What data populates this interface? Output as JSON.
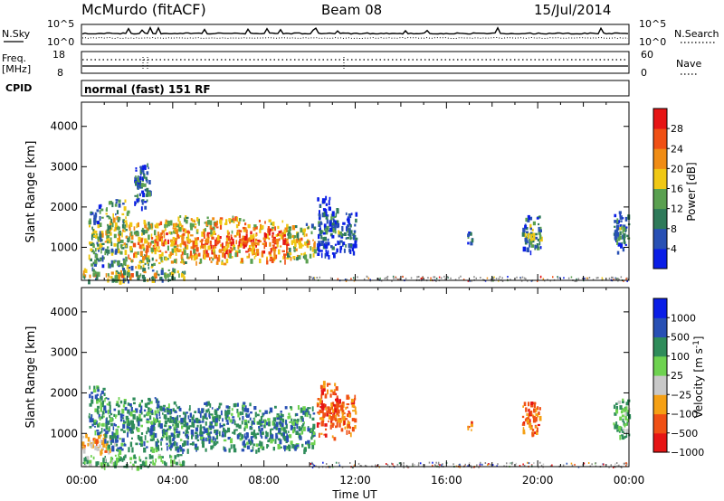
{
  "header": {
    "station": "McMurdo (fitACF)",
    "beam": "Beam 08",
    "date": "15/Jul/2014"
  },
  "top_panel": {
    "left_label": "N.Sky",
    "right_label": "N.Search",
    "left_ticks": [
      "10^5",
      "10^0"
    ],
    "right_ticks": [
      "10^5",
      "10^0"
    ]
  },
  "freq_panel": {
    "left_label_1": "Freq.",
    "left_label_2": "[MHz]",
    "right_label": "Nave",
    "left_ticks": [
      "18",
      "8"
    ],
    "right_ticks": [
      "60",
      "0"
    ]
  },
  "cpid_panel": {
    "label": "CPID",
    "text": "normal (fast) 151 RF"
  },
  "colors": {
    "power": [
      "#0a1ee6",
      "#2850b4",
      "#2f7a5a",
      "#5aa050",
      "#f0c814",
      "#f08c14",
      "#f05014",
      "#e61414"
    ],
    "velocity": [
      "#e61414",
      "#f05014",
      "#f5a014",
      "#c8c8c8",
      "#6ed250",
      "#2f8c5a",
      "#2850b4",
      "#0a1ee6"
    ],
    "ground_scatter": "#8c8c8c"
  },
  "chart_data": [
    {
      "type": "heatmap",
      "title": "",
      "ylabel": "Slant Range [km]",
      "xlabel": "",
      "x_range_hours": [
        0,
        24
      ],
      "y_range_km": [
        180,
        4600
      ],
      "y_ticks": [
        "1000",
        "2000",
        "3000",
        "4000"
      ],
      "colorbar": {
        "label": "Power [dB]",
        "range": [
          0,
          32
        ],
        "tick_labels": [
          "4",
          "8",
          "12",
          "16",
          "20",
          "24",
          "28"
        ]
      },
      "echo_regions": [
        {
          "t": [
            0.3,
            0.9
          ],
          "r": [
            400,
            2100
          ],
          "level": 0.45
        },
        {
          "t": [
            1.0,
            2.0
          ],
          "r": [
            500,
            2200
          ],
          "level": 0.55
        },
        {
          "t": [
            2.0,
            3.2
          ],
          "r": [
            500,
            1700
          ],
          "level": 0.7
        },
        {
          "t": [
            3.2,
            5.0
          ],
          "r": [
            600,
            1800
          ],
          "level": 0.75
        },
        {
          "t": [
            5.0,
            7.0
          ],
          "r": [
            600,
            1800
          ],
          "level": 0.8
        },
        {
          "t": [
            7.0,
            9.0
          ],
          "r": [
            650,
            1700
          ],
          "level": 0.85
        },
        {
          "t": [
            9.0,
            10.2
          ],
          "r": [
            700,
            1600
          ],
          "level": 0.65
        },
        {
          "t": [
            10.3,
            11.2
          ],
          "r": [
            800,
            2300
          ],
          "level": 0.3
        },
        {
          "t": [
            11.2,
            12.0
          ],
          "r": [
            900,
            1900
          ],
          "level": 0.3
        },
        {
          "t": [
            0.0,
            4.5
          ],
          "r": [
            200,
            500
          ],
          "level": 0.6
        },
        {
          "t": [
            2.3,
            3.0
          ],
          "r": [
            2000,
            3100
          ],
          "level": 0.3
        },
        {
          "t": [
            16.9,
            17.2
          ],
          "r": [
            1100,
            1400
          ],
          "level": 0.35
        },
        {
          "t": [
            19.3,
            20.1
          ],
          "r": [
            900,
            1800
          ],
          "level": 0.45
        },
        {
          "t": [
            23.3,
            24.0
          ],
          "r": [
            900,
            1900
          ],
          "level": 0.35
        }
      ]
    },
    {
      "type": "heatmap",
      "title": "",
      "ylabel": "Slant Range [km]",
      "xlabel": "Time UT",
      "x_range_hours": [
        0,
        24
      ],
      "y_range_km": [
        180,
        4600
      ],
      "y_ticks": [
        "1000",
        "2000",
        "3000",
        "4000"
      ],
      "x_ticks": [
        "00:00",
        "04:00",
        "08:00",
        "12:00",
        "16:00",
        "20:00",
        "00:00"
      ],
      "colorbar": {
        "label": "Velocity [m s",
        "label_sup": "-1",
        "label_end": "]",
        "tick_labels": [
          "1000",
          "500",
          "100",
          "25",
          "−25",
          "−100",
          "−500",
          "−1000"
        ]
      },
      "echo_regions": [
        {
          "t": [
            0.0,
            1.5
          ],
          "r": [
            500,
            1000
          ],
          "level": 0.35
        },
        {
          "t": [
            0.3,
            1.0
          ],
          "r": [
            1000,
            2200
          ],
          "level": 0.7
        },
        {
          "t": [
            1.0,
            3.5
          ],
          "r": [
            600,
            1900
          ],
          "level": 0.7
        },
        {
          "t": [
            3.5,
            7.5
          ],
          "r": [
            600,
            1800
          ],
          "level": 0.72
        },
        {
          "t": [
            7.5,
            10.2
          ],
          "r": [
            600,
            1700
          ],
          "level": 0.7
        },
        {
          "t": [
            0.0,
            4.5
          ],
          "r": [
            200,
            500
          ],
          "level": 0.6
        },
        {
          "t": [
            10.3,
            11.2
          ],
          "r": [
            900,
            2300
          ],
          "level": 0.2
        },
        {
          "t": [
            11.2,
            12.0
          ],
          "r": [
            1000,
            2000
          ],
          "level": 0.2
        },
        {
          "t": [
            16.9,
            17.2
          ],
          "r": [
            1100,
            1400
          ],
          "level": 0.22
        },
        {
          "t": [
            19.3,
            20.1
          ],
          "r": [
            900,
            1800
          ],
          "level": 0.22
        },
        {
          "t": [
            23.3,
            24.0
          ],
          "r": [
            900,
            1900
          ],
          "level": 0.6
        }
      ]
    }
  ]
}
